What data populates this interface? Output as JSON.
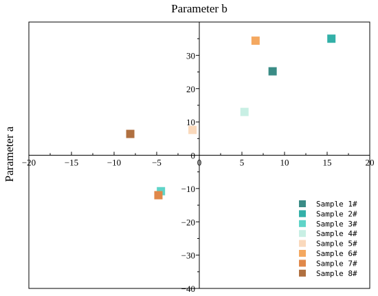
{
  "chart_data": {
    "type": "scatter",
    "title": "Parameter b",
    "xlabel": "",
    "ylabel": "Parameter a",
    "xlim": [
      -20,
      20
    ],
    "ylim": [
      -40,
      40
    ],
    "x_ticks": [
      -20,
      -15,
      -10,
      -5,
      0,
      5,
      10,
      15,
      20
    ],
    "y_ticks": [
      -40,
      -30,
      -20,
      -10,
      0,
      10,
      20,
      30
    ],
    "x_tick_labels": [
      "−20",
      "−15",
      "−10",
      "−5",
      "0",
      "5",
      "10",
      "15",
      "20"
    ],
    "y_tick_labels": [
      "−40",
      "−30",
      "−20",
      "−10",
      "0",
      "10",
      "20",
      "30"
    ],
    "axes_through_origin": true,
    "grid": false,
    "legend_position": "bottom-right",
    "series": [
      {
        "name": "Sample 1#",
        "color": "#3a8c86",
        "points": [
          [
            8.6,
            25.2
          ]
        ]
      },
      {
        "name": "Sample 2#",
        "color": "#33b0a8",
        "points": [
          [
            15.5,
            35.0
          ]
        ]
      },
      {
        "name": "Sample 3#",
        "color": "#5fd4c8",
        "points": [
          [
            -4.5,
            -10.8
          ]
        ]
      },
      {
        "name": "Sample 4#",
        "color": "#c8efe4",
        "points": [
          [
            5.3,
            13.0
          ]
        ]
      },
      {
        "name": "Sample 5#",
        "color": "#fad9bc",
        "points": [
          [
            -0.8,
            7.6
          ]
        ]
      },
      {
        "name": "Sample 6#",
        "color": "#f4a860",
        "points": [
          [
            6.6,
            34.4
          ]
        ]
      },
      {
        "name": "Sample 7#",
        "color": "#e0884a",
        "points": [
          [
            -4.8,
            -12.0
          ]
        ]
      },
      {
        "name": "Sample 8#",
        "color": "#b07040",
        "points": [
          [
            -8.1,
            6.4
          ]
        ]
      }
    ]
  }
}
